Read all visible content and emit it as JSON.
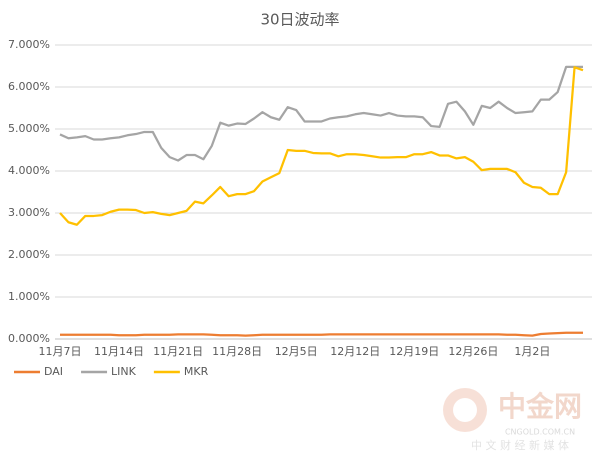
{
  "chart_data": {
    "type": "line",
    "title": "30日波动率",
    "categories": [
      "11月7日",
      null,
      null,
      null,
      null,
      null,
      null,
      "11月14日",
      null,
      null,
      null,
      null,
      null,
      null,
      "11月21日",
      null,
      null,
      null,
      null,
      null,
      null,
      "11月28日",
      null,
      null,
      null,
      null,
      null,
      null,
      "12月5日",
      null,
      null,
      null,
      null,
      null,
      null,
      "12月12日",
      null,
      null,
      null,
      null,
      null,
      null,
      "12月19日",
      null,
      null,
      null,
      null,
      null,
      null,
      "12月26日",
      null,
      null,
      null,
      null,
      null,
      null,
      "1月2日",
      null,
      null,
      null,
      null,
      null,
      null
    ],
    "series": [
      {
        "name": "DAI",
        "color": "#ed7d31",
        "values": [
          0.1,
          0.1,
          0.1,
          0.1,
          0.1,
          0.1,
          0.1,
          0.09,
          0.09,
          0.09,
          0.1,
          0.1,
          0.1,
          0.1,
          0.11,
          0.11,
          0.11,
          0.11,
          0.1,
          0.09,
          0.09,
          0.09,
          0.08,
          0.09,
          0.1,
          0.1,
          0.1,
          0.1,
          0.1,
          0.1,
          0.1,
          0.1,
          0.11,
          0.11,
          0.11,
          0.11,
          0.11,
          0.11,
          0.11,
          0.11,
          0.11,
          0.11,
          0.11,
          0.11,
          0.11,
          0.11,
          0.11,
          0.11,
          0.11,
          0.11,
          0.11,
          0.11,
          0.11,
          0.1,
          0.1,
          0.09,
          0.08,
          0.12,
          0.13,
          0.14,
          0.15,
          0.15,
          0.15
        ]
      },
      {
        "name": "LINK",
        "color": "#a5a5a5",
        "values": [
          4.87,
          4.78,
          4.8,
          4.83,
          4.75,
          4.75,
          4.78,
          4.8,
          4.85,
          4.88,
          4.93,
          4.93,
          4.55,
          4.33,
          4.25,
          4.38,
          4.38,
          4.28,
          4.6,
          5.15,
          5.08,
          5.13,
          5.12,
          5.25,
          5.4,
          5.28,
          5.22,
          5.52,
          5.45,
          5.18,
          5.18,
          5.18,
          5.25,
          5.28,
          5.3,
          5.35,
          5.38,
          5.35,
          5.32,
          5.38,
          5.32,
          5.3,
          5.3,
          5.28,
          5.07,
          5.05,
          5.6,
          5.65,
          5.42,
          5.1,
          5.55,
          5.5,
          5.65,
          5.5,
          5.38,
          5.4,
          5.42,
          5.7,
          5.7,
          5.88,
          6.48,
          6.48,
          6.48
        ]
      },
      {
        "name": "MKR",
        "color": "#ffc000",
        "values": [
          3.0,
          2.78,
          2.72,
          2.93,
          2.93,
          2.95,
          3.03,
          3.08,
          3.08,
          3.07,
          3.0,
          3.02,
          2.98,
          2.95,
          3.0,
          3.05,
          3.27,
          3.23,
          3.42,
          3.62,
          3.4,
          3.45,
          3.45,
          3.52,
          3.75,
          3.85,
          3.95,
          4.5,
          4.48,
          4.48,
          4.43,
          4.42,
          4.42,
          4.35,
          4.4,
          4.4,
          4.38,
          4.35,
          4.32,
          4.32,
          4.33,
          4.33,
          4.4,
          4.4,
          4.45,
          4.37,
          4.37,
          4.3,
          4.33,
          4.22,
          4.02,
          4.05,
          4.05,
          4.05,
          3.97,
          3.72,
          3.62,
          3.6,
          3.45,
          3.45,
          3.97,
          6.47,
          6.4
        ]
      }
    ],
    "ylim": [
      0,
      7
    ],
    "yticks": [
      {
        "value": 0,
        "label": "0.000%"
      },
      {
        "value": 1,
        "label": "1.000%"
      },
      {
        "value": 2,
        "label": "2.000%"
      },
      {
        "value": 3,
        "label": "3.000%"
      },
      {
        "value": 4,
        "label": "4.000%"
      },
      {
        "value": 5,
        "label": "5.000%"
      },
      {
        "value": 6,
        "label": "6.000%"
      },
      {
        "value": 7,
        "label": "7.000%"
      }
    ],
    "grid": true,
    "legend": "bottom",
    "watermark": {
      "name": "中金网",
      "url": "CNGOLD.COM.CN",
      "slogan": "中 文 财 经 新 媒 体"
    }
  }
}
